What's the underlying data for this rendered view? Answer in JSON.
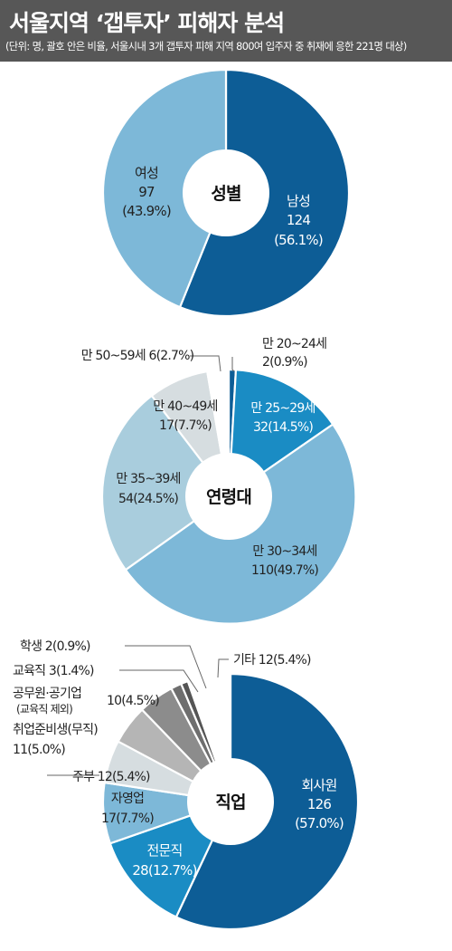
{
  "header": {
    "title": "서울지역 ‘갭투자’ 피해자 분석",
    "subtitle": "(단위: 명, 괄호 안은 비율, 서울시내 3개 갭투자 피해 지역 800여 입주자 중 취재에 응한 221명 대상)"
  },
  "colors": {
    "header_bg": "#575757",
    "dark_blue": "#0d5d96",
    "mid_blue": "#1a8cc4",
    "light_blue": "#7db8d8",
    "pale_blue": "#a9cddd",
    "pale_gray": "#d6dde0",
    "gray": "#8c8c8c",
    "dark_gray": "#555555"
  },
  "chart_data": [
    {
      "type": "pie",
      "title": "성별",
      "slices": [
        {
          "label": "남성",
          "value": 124,
          "percent": "56.1%",
          "color": "#0d5d96"
        },
        {
          "label": "여성",
          "value": 97,
          "percent": "43.9%",
          "color": "#7db8d8"
        }
      ]
    },
    {
      "type": "pie",
      "title": "연령대",
      "slices": [
        {
          "label": "만 20~24세",
          "value": 2,
          "percent": "0.9%",
          "color": "#0d5d96"
        },
        {
          "label": "만 25~29세",
          "value": 32,
          "percent": "14.5%",
          "color": "#1a8cc4"
        },
        {
          "label": "만 30~34세",
          "value": 110,
          "percent": "49.7%",
          "color": "#7db8d8"
        },
        {
          "label": "만 35~39세",
          "value": 54,
          "percent": "24.5%",
          "color": "#a9cddd"
        },
        {
          "label": "만 40~49세",
          "value": 17,
          "percent": "7.7%",
          "color": "#d6dde0"
        },
        {
          "label": "만 50~59세",
          "value": 6,
          "percent": "2.7%",
          "color": "#ffffff"
        }
      ]
    },
    {
      "type": "pie",
      "title": "직업",
      "slices": [
        {
          "label": "회사원",
          "value": 126,
          "percent": "57.0%",
          "color": "#0d5d96"
        },
        {
          "label": "전문직",
          "value": 28,
          "percent": "12.7%",
          "color": "#1a8cc4"
        },
        {
          "label": "자영업",
          "value": 17,
          "percent": "7.7%",
          "color": "#7db8d8"
        },
        {
          "label": "주부",
          "value": 12,
          "percent": "5.4%",
          "color": "#d6dde0"
        },
        {
          "label": "취업준비생(무직)",
          "value": 11,
          "percent": "5.0%",
          "color": "#b5b5b5"
        },
        {
          "label": "공무원·공기업",
          "sublabel": "(교육직 제외)",
          "value": 10,
          "percent": "4.5%",
          "color": "#8c8c8c"
        },
        {
          "label": "교육직",
          "value": 3,
          "percent": "1.4%",
          "color": "#6e6e6e"
        },
        {
          "label": "학생",
          "value": 2,
          "percent": "0.9%",
          "color": "#555555"
        },
        {
          "label": "기타",
          "value": 12,
          "percent": "5.4%",
          "color": "#ffffff"
        }
      ]
    }
  ]
}
